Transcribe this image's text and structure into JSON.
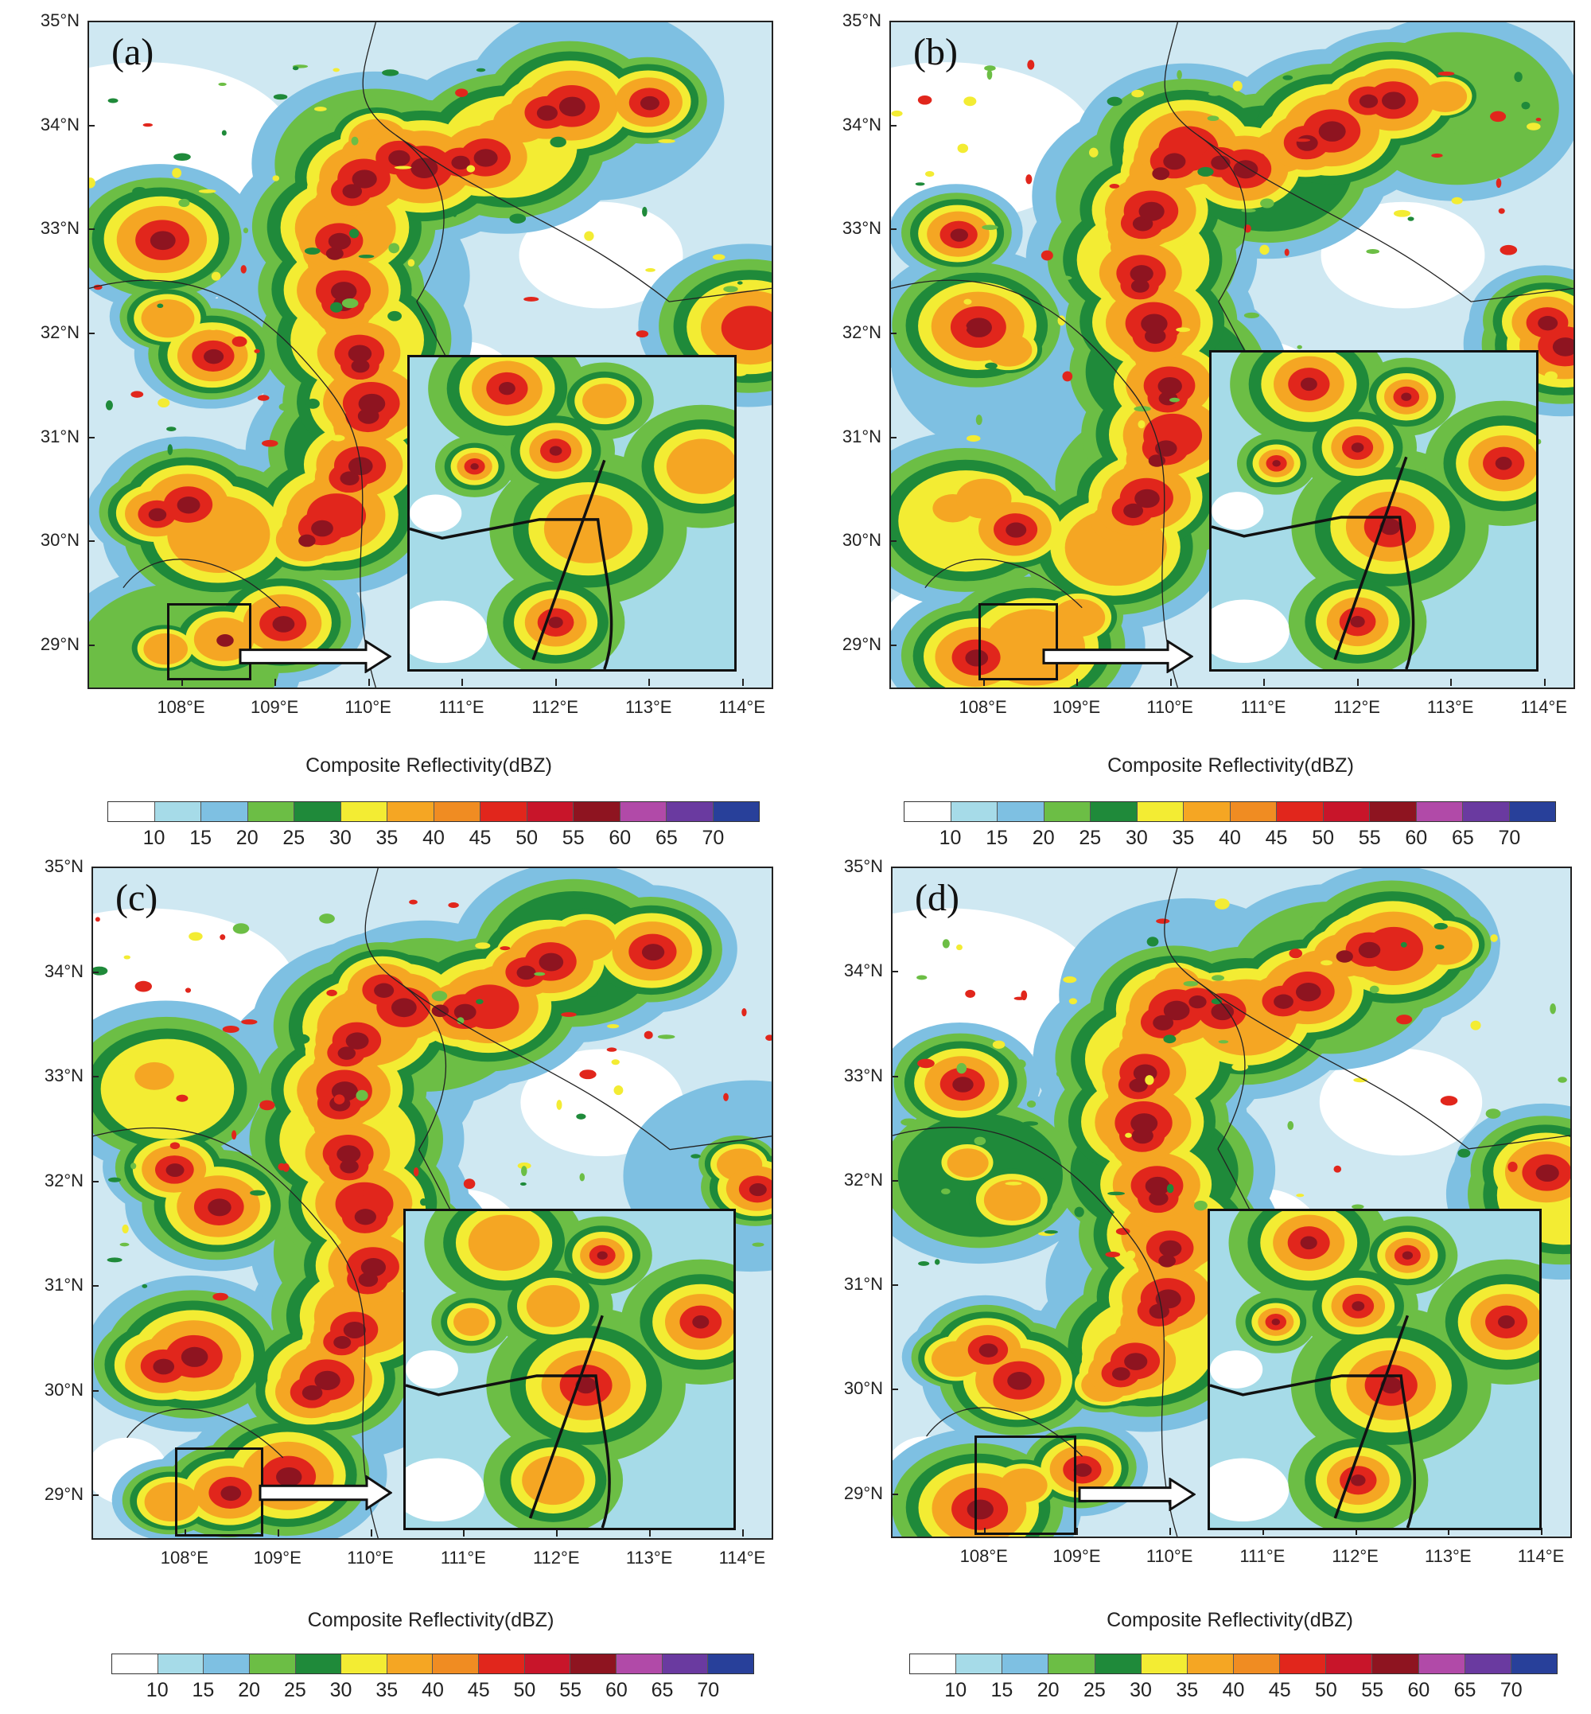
{
  "figure_title": "",
  "panels": [
    {
      "id": "a",
      "label": "(a)"
    },
    {
      "id": "b",
      "label": "(b)"
    },
    {
      "id": "c",
      "label": "(c)"
    },
    {
      "id": "d",
      "label": "(d)"
    }
  ],
  "axes": {
    "lat_labels": [
      "35°N",
      "34°N",
      "33°N",
      "32°N",
      "31°N",
      "30°N",
      "29°N"
    ],
    "lon_labels": [
      "108°E",
      "109°E",
      "110°E",
      "111°E",
      "112°E",
      "113°E",
      "114°E"
    ],
    "caption": "Composite Reflectivity(dBZ)"
  },
  "colorbar": {
    "colors": [
      "#ffffff",
      "#a6dbe8",
      "#7ec0e2",
      "#6cbe45",
      "#1f8a3a",
      "#f3ec33",
      "#f5a623",
      "#f08c22",
      "#e1261c",
      "#c8152a",
      "#8e1420",
      "#b14aa8",
      "#6a3aa0",
      "#28409a"
    ],
    "labels": [
      "10",
      "15",
      "20",
      "25",
      "30",
      "35",
      "40",
      "45",
      "50",
      "55",
      "60",
      "65",
      "70"
    ]
  },
  "chart_data": [
    {
      "type": "heatmap",
      "title": "(a)",
      "xlabel": "Composite Reflectivity(dBZ)",
      "ylabel": "",
      "x_ticks": [
        "108°E",
        "109°E",
        "110°E",
        "111°E",
        "112°E",
        "113°E",
        "114°E"
      ],
      "y_ticks": [
        "35°N",
        "34°N",
        "33°N",
        "32°N",
        "31°N",
        "30°N",
        "29°N"
      ],
      "xlim": [
        107.0,
        114.3
      ],
      "ylim": [
        28.6,
        35.0
      ],
      "colorbar_levels": [
        10,
        15,
        20,
        25,
        30,
        35,
        40,
        45,
        50,
        55,
        60,
        65,
        70
      ],
      "zoom_box": {
        "lon": [
          107.85,
          108.75
        ],
        "lat": [
          28.65,
          29.4
        ]
      }
    },
    {
      "type": "heatmap",
      "title": "(b)",
      "xlabel": "Composite Reflectivity(dBZ)",
      "ylabel": "",
      "x_ticks": [
        "108°E",
        "109°E",
        "110°E",
        "111°E",
        "112°E",
        "113°E",
        "114°E"
      ],
      "y_ticks": [
        "35°N",
        "34°N",
        "33°N",
        "32°N",
        "31°N",
        "30°N",
        "29°N"
      ],
      "xlim": [
        107.0,
        114.3
      ],
      "ylim": [
        28.6,
        35.0
      ],
      "colorbar_levels": [
        10,
        15,
        20,
        25,
        30,
        35,
        40,
        45,
        50,
        55,
        60,
        65,
        70
      ],
      "zoom_box": {
        "lon": [
          107.95,
          108.8
        ],
        "lat": [
          28.65,
          29.4
        ]
      }
    },
    {
      "type": "heatmap",
      "title": "(c)",
      "xlabel": "Composite Reflectivity(dBZ)",
      "ylabel": "",
      "x_ticks": [
        "108°E",
        "109°E",
        "110°E",
        "111°E",
        "112°E",
        "113°E",
        "114°E"
      ],
      "y_ticks": [
        "35°N",
        "34°N",
        "33°N",
        "32°N",
        "31°N",
        "30°N",
        "29°N"
      ],
      "xlim": [
        107.0,
        114.3
      ],
      "ylim": [
        28.6,
        35.0
      ],
      "colorbar_levels": [
        10,
        15,
        20,
        25,
        30,
        35,
        40,
        45,
        50,
        55,
        60,
        65,
        70
      ],
      "zoom_box": {
        "lon": [
          107.9,
          108.85
        ],
        "lat": [
          28.6,
          29.45
        ]
      }
    },
    {
      "type": "heatmap",
      "title": "(d)",
      "xlabel": "Composite Reflectivity(dBZ)",
      "ylabel": "",
      "x_ticks": [
        "108°E",
        "109°E",
        "110°E",
        "111°E",
        "112°E",
        "113°E",
        "114°E"
      ],
      "y_ticks": [
        "35°N",
        "34°N",
        "33°N",
        "32°N",
        "31°N",
        "30°N",
        "29°N"
      ],
      "xlim": [
        107.0,
        114.3
      ],
      "ylim": [
        28.6,
        35.0
      ],
      "colorbar_levels": [
        10,
        15,
        20,
        25,
        30,
        35,
        40,
        45,
        50,
        55,
        60,
        65,
        70
      ],
      "zoom_box": {
        "lon": [
          107.9,
          109.0
        ],
        "lat": [
          28.6,
          29.55
        ]
      }
    }
  ]
}
